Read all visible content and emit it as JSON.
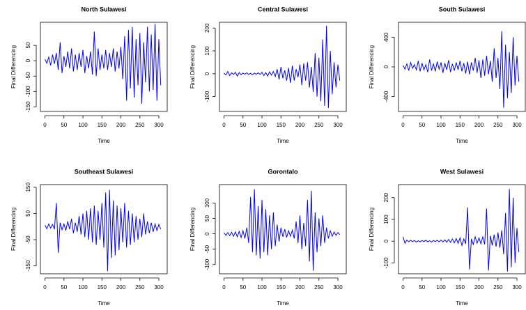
{
  "chart_data": [
    {
      "type": "line",
      "title": "North Sulawesi",
      "x_label": "Time",
      "y_label": "Final Differencing",
      "x": [
        0,
        5,
        10,
        15,
        20,
        25,
        30,
        35,
        40,
        45,
        50,
        55,
        60,
        65,
        70,
        75,
        80,
        85,
        90,
        95,
        100,
        105,
        110,
        115,
        120,
        125,
        130,
        135,
        140,
        145,
        150,
        155,
        160,
        165,
        170,
        175,
        180,
        185,
        190,
        195,
        200,
        205,
        210,
        215,
        220,
        225,
        230,
        235,
        240,
        245,
        250,
        255,
        260,
        265,
        270,
        275,
        280,
        285,
        290,
        295,
        300,
        305
      ],
      "series": [
        {
          "color": "#0000ff",
          "values": [
            5,
            -8,
            12,
            -15,
            20,
            -10,
            25,
            -30,
            60,
            -40,
            15,
            -20,
            30,
            -25,
            40,
            -35,
            20,
            -30,
            25,
            -20,
            35,
            -40,
            15,
            -25,
            30,
            -45,
            95,
            -50,
            40,
            -30,
            20,
            -25,
            35,
            -30,
            25,
            -20,
            40,
            -35,
            30,
            -25,
            45,
            -60,
            80,
            -130,
            100,
            -90,
            110,
            -120,
            70,
            -80,
            90,
            -140,
            60,
            -70,
            110,
            -100,
            85,
            -95,
            120,
            -130,
            70,
            -80
          ]
        }
      ],
      "xlim": [
        -12,
        322
      ],
      "ylim": [
        -165,
        125
      ],
      "xticks": [
        0,
        50,
        100,
        150,
        200,
        250,
        300
      ],
      "yticks": [
        -150,
        -100,
        -50,
        0,
        50
      ]
    },
    {
      "type": "line",
      "title": "Central Sulawesi",
      "x_label": "Time",
      "y_label": "Final Differencing",
      "x": [
        0,
        5,
        10,
        15,
        20,
        25,
        30,
        35,
        40,
        45,
        50,
        55,
        60,
        65,
        70,
        75,
        80,
        85,
        90,
        95,
        100,
        105,
        110,
        115,
        120,
        125,
        130,
        135,
        140,
        145,
        150,
        155,
        160,
        165,
        170,
        175,
        180,
        185,
        190,
        195,
        200,
        205,
        210,
        215,
        220,
        225,
        230,
        235,
        240,
        245,
        250,
        255,
        260,
        265,
        270,
        275,
        280,
        285,
        290,
        295,
        300,
        305
      ],
      "series": [
        {
          "color": "#0000ff",
          "values": [
            2,
            -5,
            10,
            -8,
            4,
            -3,
            6,
            -10,
            5,
            -4,
            3,
            -2,
            4,
            -3,
            2,
            -5,
            3,
            -2,
            4,
            -3,
            6,
            -8,
            5,
            -10,
            8,
            -6,
            10,
            -12,
            20,
            -25,
            30,
            -20,
            15,
            -30,
            25,
            -40,
            35,
            -30,
            20,
            -15,
            40,
            -50,
            45,
            -30,
            50,
            -60,
            30,
            -80,
            90,
            -100,
            70,
            -120,
            150,
            -140,
            210,
            -150,
            100,
            -90,
            50,
            -60,
            40,
            -30
          ]
        }
      ],
      "xlim": [
        -12,
        322
      ],
      "ylim": [
        -165,
        225
      ],
      "xticks": [
        0,
        50,
        100,
        150,
        200,
        250,
        300
      ],
      "yticks": [
        -100,
        0,
        100,
        200
      ]
    },
    {
      "type": "line",
      "title": "South Sulawesi",
      "x_label": "Time",
      "y_label": "Final Differencing",
      "x": [
        0,
        5,
        10,
        15,
        20,
        25,
        30,
        35,
        40,
        45,
        50,
        55,
        60,
        65,
        70,
        75,
        80,
        85,
        90,
        95,
        100,
        105,
        110,
        115,
        120,
        125,
        130,
        135,
        140,
        145,
        150,
        155,
        160,
        165,
        170,
        175,
        180,
        185,
        190,
        195,
        200,
        205,
        210,
        215,
        220,
        225,
        230,
        235,
        240,
        245,
        250,
        255,
        260,
        265,
        270,
        275,
        280,
        285,
        290,
        295,
        300,
        305
      ],
      "series": [
        {
          "color": "#0000ff",
          "values": [
            20,
            -30,
            40,
            -50,
            60,
            -20,
            30,
            -40,
            80,
            -60,
            50,
            -40,
            30,
            -70,
            100,
            -50,
            40,
            -60,
            70,
            -30,
            60,
            -80,
            50,
            -40,
            90,
            -70,
            40,
            -50,
            60,
            -40,
            80,
            -60,
            50,
            -90,
            70,
            -100,
            60,
            -50,
            120,
            -80,
            90,
            -150,
            100,
            -120,
            150,
            -100,
            80,
            -200,
            250,
            -150,
            120,
            -300,
            480,
            -550,
            300,
            -420,
            200,
            -350,
            400,
            -250,
            150,
            -200
          ]
        }
      ],
      "xlim": [
        -12,
        322
      ],
      "ylim": [
        -600,
        600
      ],
      "xticks": [
        0,
        50,
        100,
        150,
        200,
        250,
        300
      ],
      "yticks": [
        -400,
        0,
        400
      ]
    },
    {
      "type": "line",
      "title": "Southeast Sulawesi",
      "x_label": "Time",
      "y_label": "Final Differencing",
      "x": [
        0,
        5,
        10,
        15,
        20,
        25,
        30,
        35,
        40,
        45,
        50,
        55,
        60,
        65,
        70,
        75,
        80,
        85,
        90,
        95,
        100,
        105,
        110,
        115,
        120,
        125,
        130,
        135,
        140,
        145,
        150,
        155,
        160,
        165,
        170,
        175,
        180,
        185,
        190,
        195,
        200,
        205,
        210,
        215,
        220,
        225,
        230,
        235,
        240,
        245,
        250,
        255,
        260,
        265,
        270,
        275,
        280,
        285,
        290,
        295,
        300,
        305
      ],
      "series": [
        {
          "color": "#0000ff",
          "values": [
            5,
            -8,
            10,
            -6,
            8,
            -10,
            90,
            -100,
            15,
            -12,
            10,
            -15,
            20,
            -10,
            30,
            -25,
            15,
            -20,
            40,
            -30,
            50,
            -40,
            60,
            -50,
            70,
            -60,
            80,
            -70,
            60,
            -50,
            90,
            -80,
            130,
            -170,
            140,
            -120,
            100,
            -110,
            80,
            -90,
            70,
            -60,
            90,
            -80,
            60,
            -70,
            50,
            -60,
            40,
            -50,
            30,
            -40,
            50,
            -30,
            20,
            -25,
            15,
            -20,
            10,
            -15,
            8,
            -10
          ]
        }
      ],
      "xlim": [
        -12,
        322
      ],
      "ylim": [
        -180,
        160
      ],
      "xticks": [
        0,
        50,
        100,
        150,
        200,
        250,
        300
      ],
      "yticks": [
        -150,
        -50,
        50,
        150
      ]
    },
    {
      "type": "line",
      "title": "Gorontalo",
      "x_label": "Time",
      "y_label": "Final Differencing",
      "x": [
        0,
        5,
        10,
        15,
        20,
        25,
        30,
        35,
        40,
        45,
        50,
        55,
        60,
        65,
        70,
        75,
        80,
        85,
        90,
        95,
        100,
        105,
        110,
        115,
        120,
        125,
        130,
        135,
        140,
        145,
        150,
        155,
        160,
        165,
        170,
        175,
        180,
        185,
        190,
        195,
        200,
        205,
        210,
        215,
        220,
        225,
        230,
        235,
        240,
        245,
        250,
        255,
        260,
        265,
        270,
        275,
        280,
        285,
        290,
        295,
        300,
        305
      ],
      "series": [
        {
          "color": "#0000ff",
          "values": [
            3,
            -5,
            4,
            -6,
            5,
            -8,
            6,
            -10,
            8,
            -12,
            10,
            -15,
            20,
            -30,
            120,
            -60,
            145,
            -70,
            90,
            -80,
            110,
            -60,
            80,
            -70,
            60,
            -50,
            70,
            -40,
            30,
            -25,
            20,
            -10,
            15,
            -12,
            10,
            -8,
            12,
            -15,
            40,
            -30,
            60,
            -50,
            35,
            -40,
            110,
            -90,
            140,
            -120,
            70,
            -60,
            50,
            -40,
            60,
            -30,
            20,
            -15,
            10,
            -8,
            6,
            -5,
            4,
            -3
          ]
        }
      ],
      "xlim": [
        -12,
        322
      ],
      "ylim": [
        -130,
        160
      ],
      "xticks": [
        0,
        50,
        100,
        150,
        200,
        250,
        300
      ],
      "yticks": [
        -100,
        -50,
        0,
        50,
        100
      ]
    },
    {
      "type": "line",
      "title": "West Sulawesi",
      "x_label": "Time",
      "y_label": "Final Differencing",
      "x": [
        0,
        5,
        10,
        15,
        20,
        25,
        30,
        35,
        40,
        45,
        50,
        55,
        60,
        65,
        70,
        75,
        80,
        85,
        90,
        95,
        100,
        105,
        110,
        115,
        120,
        125,
        130,
        135,
        140,
        145,
        150,
        155,
        160,
        165,
        170,
        175,
        180,
        185,
        190,
        195,
        200,
        205,
        210,
        215,
        220,
        225,
        230,
        235,
        240,
        245,
        250,
        255,
        260,
        265,
        270,
        275,
        280,
        285,
        290,
        295,
        300,
        305
      ],
      "series": [
        {
          "color": "#0000ff",
          "values": [
            20,
            -10,
            5,
            -3,
            4,
            -2,
            3,
            -4,
            2,
            -3,
            3,
            -2,
            4,
            -3,
            2,
            -4,
            3,
            -2,
            4,
            -3,
            5,
            -4,
            6,
            -5,
            8,
            -6,
            10,
            -8,
            12,
            -10,
            15,
            -20,
            10,
            -12,
            155,
            -130,
            10,
            -15,
            20,
            -10,
            15,
            -12,
            20,
            -15,
            150,
            -135,
            25,
            -20,
            30,
            -25,
            40,
            -30,
            50,
            -60,
            130,
            -140,
            240,
            -120,
            200,
            -100,
            60,
            -50
          ]
        }
      ],
      "xlim": [
        -12,
        322
      ],
      "ylim": [
        -150,
        260
      ],
      "xticks": [
        0,
        50,
        100,
        150,
        200,
        250,
        300
      ],
      "yticks": [
        -100,
        0,
        100,
        200
      ]
    }
  ]
}
